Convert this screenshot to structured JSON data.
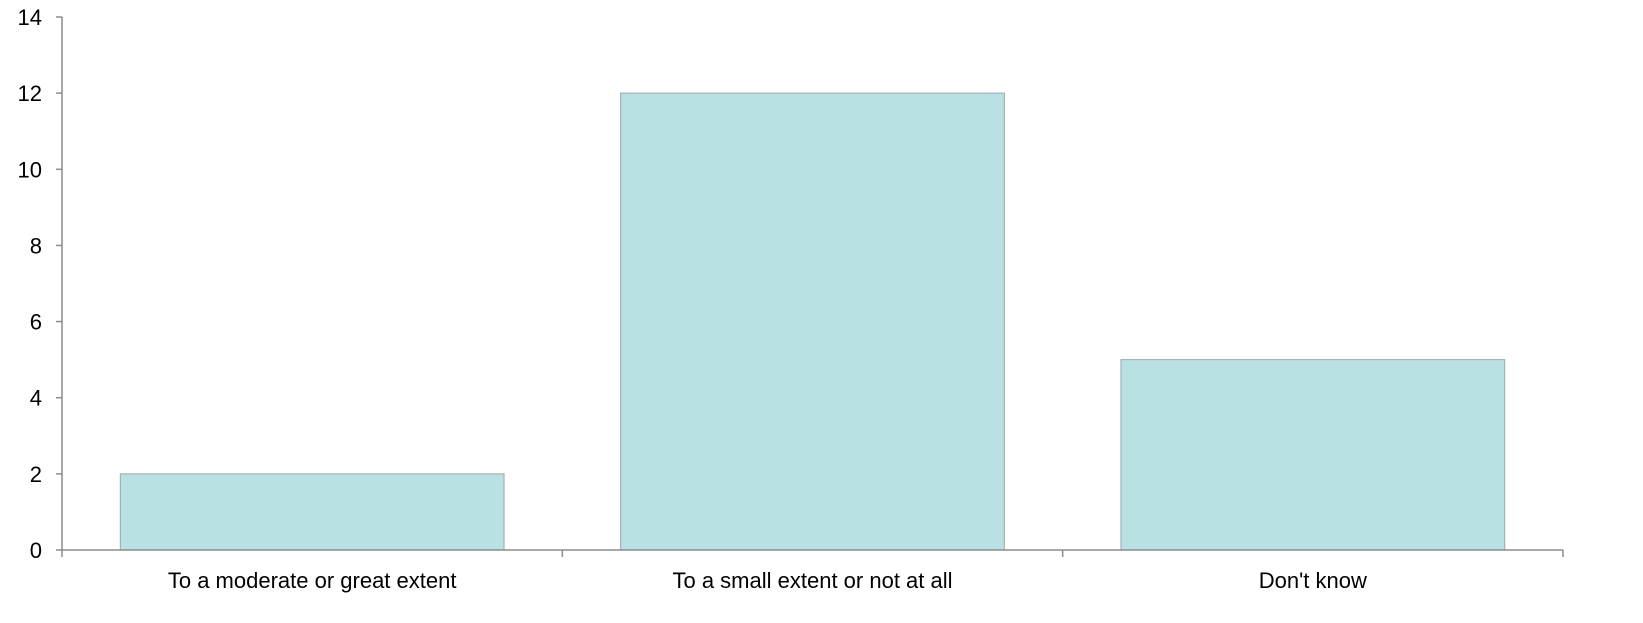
{
  "chart_data": {
    "type": "bar",
    "categories": [
      "To a moderate or great extent",
      "To a small extent or not at all",
      "Don't know"
    ],
    "values": [
      2,
      12,
      5
    ],
    "ylim": [
      0,
      14
    ],
    "yticks": [
      0,
      2,
      4,
      6,
      8,
      10,
      12,
      14
    ],
    "ytick_labels": [
      "0",
      "2",
      "4",
      "6",
      "8",
      "10",
      "12",
      "14"
    ],
    "title": "",
    "xlabel": "",
    "ylabel": "",
    "grid": false,
    "legend": "none",
    "colors": {
      "bar_fill": "#b9e0e3",
      "bar_stroke": "#9aa8aa",
      "axis": "#8c8c8c",
      "text": "#000000",
      "background": "#ffffff"
    }
  }
}
